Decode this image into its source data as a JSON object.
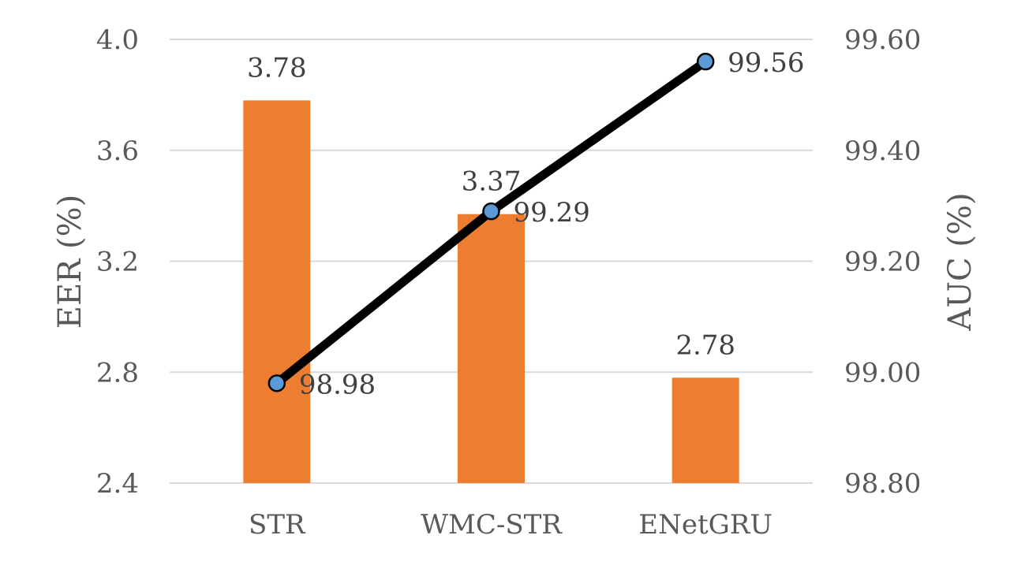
{
  "chart_data": {
    "type": "bar",
    "categories": [
      "STR",
      "WMC-STR",
      "ENetGRU"
    ],
    "series": [
      {
        "type": "bar",
        "axis": "left",
        "values": [
          3.78,
          3.37,
          2.78
        ],
        "labels": [
          "3.78",
          "3.37",
          "2.78"
        ],
        "color": "#ed7d31"
      },
      {
        "type": "line",
        "axis": "right",
        "values": [
          98.98,
          99.29,
          99.56
        ],
        "labels": [
          "98.98",
          "99.29",
          "99.56"
        ],
        "color": "#000000",
        "marker_color": "#5b9bd5"
      }
    ],
    "ylabel": "EER (%)",
    "ylim": [
      2.4,
      4.0
    ],
    "yticks": [
      "2.4",
      "2.8",
      "3.2",
      "3.6",
      "4.0"
    ],
    "y2label": "AUC (%)",
    "y2lim": [
      98.8,
      99.6
    ],
    "y2ticks": [
      "98.80",
      "99.00",
      "99.20",
      "99.40",
      "99.60"
    ],
    "grid": true,
    "legend": "none"
  }
}
